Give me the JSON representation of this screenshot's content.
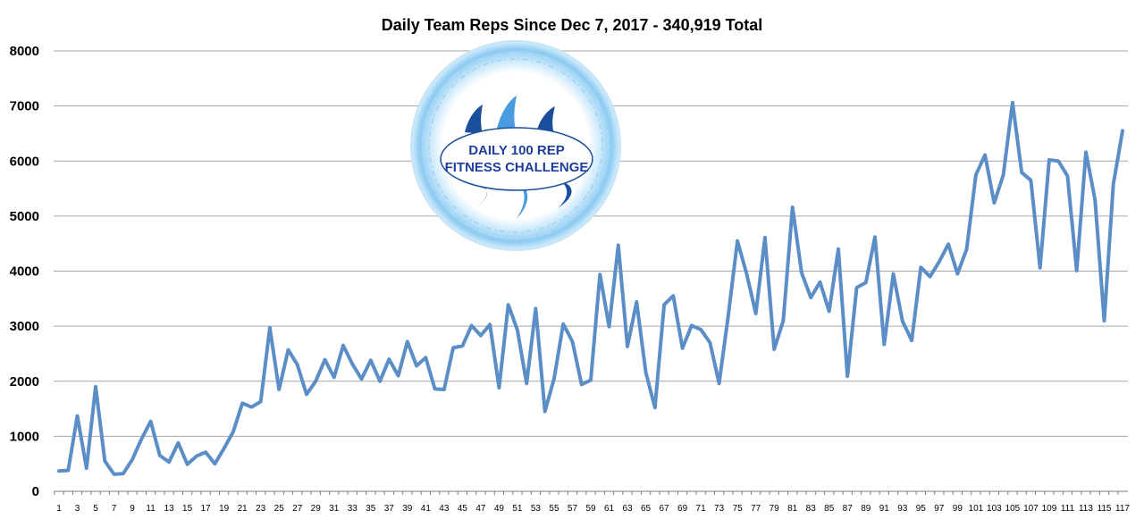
{
  "chart_data": {
    "type": "line",
    "title": "Daily Team Reps Since Dec 7, 2017 - 340,919 Total",
    "xlabel": "",
    "ylabel": "",
    "ylim": [
      0,
      8000
    ],
    "yticks": [
      0,
      1000,
      2000,
      3000,
      4000,
      5000,
      6000,
      7000,
      8000
    ],
    "xlim": [
      1,
      117
    ],
    "xtick_labels": [
      1,
      3,
      5,
      7,
      9,
      11,
      13,
      15,
      17,
      19,
      21,
      23,
      25,
      27,
      29,
      31,
      33,
      35,
      37,
      39,
      41,
      43,
      45,
      47,
      49,
      51,
      53,
      55,
      57,
      59,
      61,
      63,
      65,
      67,
      69,
      71,
      73,
      75,
      77,
      79,
      81,
      83,
      85,
      87,
      89,
      91,
      93,
      95,
      97,
      99,
      101,
      103,
      105,
      107,
      109,
      111,
      113,
      115,
      117
    ],
    "grid": true,
    "legend": "none",
    "line_color": "#5b8ec6",
    "series": [
      {
        "x": [
          1,
          2,
          3,
          4,
          5,
          6,
          7,
          8,
          9,
          10,
          11,
          12,
          13,
          14,
          15,
          16,
          17,
          18,
          19,
          20,
          21,
          22,
          23,
          24,
          25,
          26,
          27,
          28,
          29,
          30,
          31,
          32,
          33,
          34,
          35,
          36,
          37,
          38,
          39,
          40,
          41,
          42,
          43,
          44,
          45,
          46,
          47,
          48,
          49,
          50,
          51,
          52,
          53,
          54,
          55,
          56,
          57,
          58,
          59,
          60,
          61,
          62,
          63,
          64,
          65,
          66,
          67,
          68,
          69,
          70,
          71,
          72,
          73,
          74,
          75,
          76,
          77,
          78,
          79,
          80,
          81,
          82,
          83,
          84,
          85,
          86,
          87,
          88,
          89,
          90,
          91,
          92,
          93,
          94,
          95,
          96,
          97,
          98,
          99,
          100,
          101,
          102,
          103,
          104,
          105,
          106,
          107,
          108,
          109,
          110,
          111,
          112,
          113,
          114,
          115,
          116,
          117
        ],
        "values": [
          370,
          380,
          1370,
          420,
          1900,
          550,
          310,
          320,
          580,
          950,
          1270,
          650,
          530,
          880,
          490,
          640,
          710,
          500,
          780,
          1080,
          1600,
          1530,
          1630,
          2970,
          1850,
          2570,
          2300,
          1760,
          2000,
          2390,
          2070,
          2650,
          2310,
          2040,
          2380,
          2000,
          2400,
          2100,
          2720,
          2280,
          2430,
          1860,
          1850,
          2610,
          2640,
          3010,
          2830,
          3030,
          1880,
          3390,
          2930,
          1960,
          3320,
          1450,
          2050,
          3040,
          2720,
          1940,
          2020,
          3940,
          2990,
          4470,
          2630,
          3440,
          2160,
          1520,
          3390,
          3550,
          2600,
          3010,
          2940,
          2700,
          1960,
          3200,
          4550,
          3950,
          3230,
          4610,
          2580,
          3100,
          5160,
          3970,
          3520,
          3800,
          3270,
          4400,
          2090,
          3700,
          3790,
          4620,
          2670,
          3950,
          3090,
          2740,
          4070,
          3900,
          4170,
          4490,
          3950,
          4400,
          5750,
          6110,
          5240,
          5750,
          7060,
          5790,
          5650,
          4060,
          6020,
          6000,
          5730,
          4010,
          6160,
          5300,
          3100,
          5580,
          6550
        ]
      }
    ]
  },
  "logo": {
    "line1": "DAILY 100 REP",
    "line2": "FITNESS CHALLENGE",
    "colors": {
      "ring": "#a7d6f5",
      "ring_dark": "#6ab7ea",
      "wave_dark": "#1a4f9c",
      "wave_light": "#4a9be0",
      "text": "#1f3f9a"
    }
  }
}
